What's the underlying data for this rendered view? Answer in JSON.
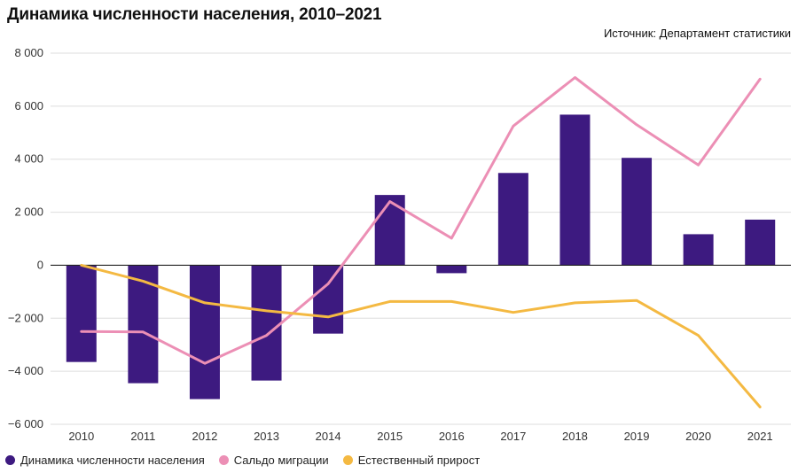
{
  "chart_data": {
    "type": "bar",
    "title": "Динамика численности населения, 2010–2021",
    "source": "Источник: Департамент статистики",
    "categories": [
      "2010",
      "2011",
      "2012",
      "2013",
      "2014",
      "2015",
      "2016",
      "2017",
      "2018",
      "2019",
      "2020",
      "2021"
    ],
    "ylim": [
      -6000,
      8000
    ],
    "yticks": [
      8000,
      6000,
      4000,
      2000,
      0,
      -2000,
      -4000,
      -6000
    ],
    "ytick_labels": [
      "8 000",
      "6 000",
      "4 000",
      "2 000",
      "0",
      "−2 000",
      "−4 000",
      "−6 000"
    ],
    "grid": true,
    "legend_position": "bottom-left",
    "series": [
      {
        "name": "Динамика численности населения",
        "kind": "bar",
        "color": "#3d1a80",
        "values": [
          -3650,
          -4450,
          -5050,
          -4350,
          -2580,
          2650,
          -300,
          3480,
          5680,
          4050,
          1170,
          1720
        ]
      },
      {
        "name": "Сальдо миграции",
        "kind": "line",
        "color": "#ec8fb5",
        "values": [
          -2500,
          -2520,
          -3700,
          -2650,
          -700,
          2400,
          1020,
          5250,
          7080,
          5300,
          3780,
          7020
        ]
      },
      {
        "name": "Естественный прирост",
        "kind": "line",
        "color": "#f4b942",
        "values": [
          0,
          -600,
          -1420,
          -1720,
          -1950,
          -1370,
          -1370,
          -1780,
          -1420,
          -1330,
          -2650,
          -5350
        ]
      }
    ]
  }
}
